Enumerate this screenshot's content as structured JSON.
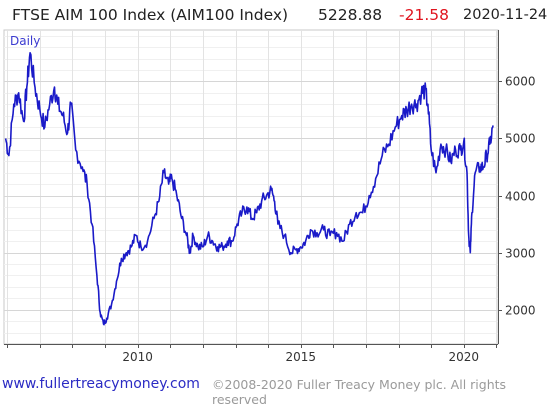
{
  "header": {
    "name": "FTSE AIM 100 Index (AIM100 Index)",
    "price": "5228.88",
    "change": "-21.58",
    "date": "2020-11-24"
  },
  "footer": {
    "url": "www.fullertreacymoney.com",
    "copyright": "©2008-2020 Fuller Treacy Money plc. All rights reserved"
  },
  "colors": {
    "line": "#1a1ac8",
    "change": "#e0141e",
    "grid": "#e3e3e3",
    "axis": "#555555"
  },
  "chart_data": {
    "type": "line",
    "title": "FTSE AIM 100 Index (AIM100 Index)",
    "period_label": "Daily",
    "x_ticks": [
      "2010",
      "2015",
      "2020"
    ],
    "y_ticks": [
      2000,
      3000,
      4000,
      5000,
      6000
    ],
    "ylim": [
      1400,
      6900
    ],
    "xlim": [
      2005.9,
      2021.05
    ],
    "grid": true,
    "series": [
      {
        "x": [
          2005.95,
          2006.05,
          2006.2,
          2006.35,
          2006.5,
          2006.6,
          2006.7,
          2006.85,
          2007.0,
          2007.15,
          2007.3,
          2007.45,
          2007.55,
          2007.7,
          2007.85,
          2007.95,
          2008.1,
          2008.3,
          2008.45,
          2008.6,
          2008.75,
          2008.85,
          2008.95,
          2009.05,
          2009.2,
          2009.35,
          2009.5,
          2009.65,
          2009.8,
          2009.95,
          2010.1,
          2010.3,
          2010.5,
          2010.65,
          2010.8,
          2010.95,
          2011.05,
          2011.2,
          2011.35,
          2011.5,
          2011.6,
          2011.7,
          2011.85,
          2012.0,
          2012.15,
          2012.3,
          2012.45,
          2012.6,
          2012.75,
          2012.9,
          2013.05,
          2013.2,
          2013.35,
          2013.5,
          2013.65,
          2013.8,
          2013.95,
          2014.1,
          2014.2,
          2014.3,
          2014.5,
          2014.7,
          2014.85,
          2015.0,
          2015.15,
          2015.3,
          2015.5,
          2015.7,
          2015.9,
          2016.1,
          2016.3,
          2016.5,
          2016.7,
          2016.9,
          2017.1,
          2017.3,
          2017.5,
          2017.7,
          2017.9,
          2018.1,
          2018.25,
          2018.4,
          2018.55,
          2018.7,
          2018.8,
          2018.9,
          2019.0,
          2019.15,
          2019.3,
          2019.45,
          2019.6,
          2019.75,
          2019.9,
          2020.0,
          2020.1,
          2020.15,
          2020.2,
          2020.25,
          2020.35,
          2020.5,
          2020.6,
          2020.7,
          2020.8,
          2020.9
        ],
        "values": [
          5000,
          4700,
          5600,
          5800,
          5300,
          5900,
          6500,
          5900,
          5500,
          5200,
          5600,
          5900,
          5600,
          5400,
          5100,
          5600,
          4800,
          4500,
          4200,
          3500,
          2600,
          1950,
          1750,
          1850,
          2100,
          2500,
          2900,
          3000,
          3100,
          3300,
          3100,
          3200,
          3600,
          3900,
          4400,
          4200,
          4300,
          4000,
          3600,
          3300,
          3000,
          3300,
          3100,
          3100,
          3300,
          3200,
          3100,
          3100,
          3200,
          3200,
          3500,
          3700,
          3800,
          3600,
          3700,
          3900,
          4000,
          4100,
          3900,
          3500,
          3300,
          3000,
          3050,
          3100,
          3200,
          3400,
          3350,
          3400,
          3300,
          3350,
          3200,
          3500,
          3700,
          3700,
          4000,
          4300,
          4700,
          4900,
          5200,
          5400,
          5500,
          5600,
          5600,
          5800,
          5850,
          5600,
          4800,
          4400,
          4900,
          4800,
          4600,
          4800,
          4800,
          4950,
          4400,
          3300,
          3000,
          3700,
          4400,
          4500,
          4500,
          4700,
          4900,
          5229
        ]
      }
    ]
  }
}
